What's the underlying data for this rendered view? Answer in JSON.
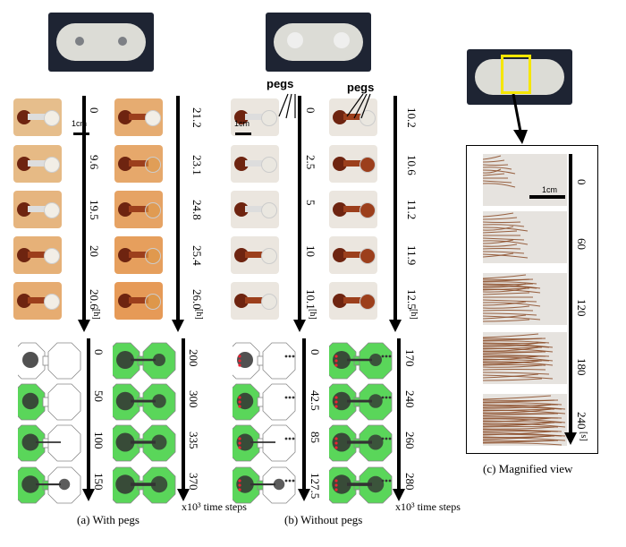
{
  "panel_a": {
    "caption": "(a) With pegs",
    "photo_times_col1": [
      "0",
      "9.6",
      "19.5",
      "20",
      "20.6"
    ],
    "photo_times_col2": [
      "21.2",
      "23.1",
      "24.8",
      "25.4",
      "26.0"
    ],
    "photo_unit": "[h]",
    "sim_steps_col1": [
      "0",
      "50",
      "100",
      "150"
    ],
    "sim_steps_col2": [
      "200",
      "300",
      "335",
      "370"
    ],
    "scale": "1cm"
  },
  "panel_b": {
    "caption": "(b) Without pegs",
    "photo_times_col1": [
      "0",
      "2.5",
      "5",
      "10",
      "10.1"
    ],
    "photo_times_col2": [
      "10.2",
      "10.6",
      "11.2",
      "11.9",
      "12.5"
    ],
    "photo_unit": "[h]",
    "sim_steps_col1": [
      "0",
      "42.5",
      "85",
      "127.5"
    ],
    "sim_steps_col2": [
      "170",
      "240",
      "260",
      "280"
    ],
    "peg_label": "pegs",
    "scale": "1cm"
  },
  "panel_c": {
    "caption": "(c) Magnified view",
    "times": [
      "0",
      "60",
      "120",
      "180",
      "240"
    ],
    "unit": "[s]",
    "scale": "1cm"
  },
  "time_steps_label": "x10³ time steps",
  "colors": {
    "sim_green": "#5ad65a",
    "plasmodium": "#7a2a12",
    "yellow_box": "#f5e600"
  }
}
